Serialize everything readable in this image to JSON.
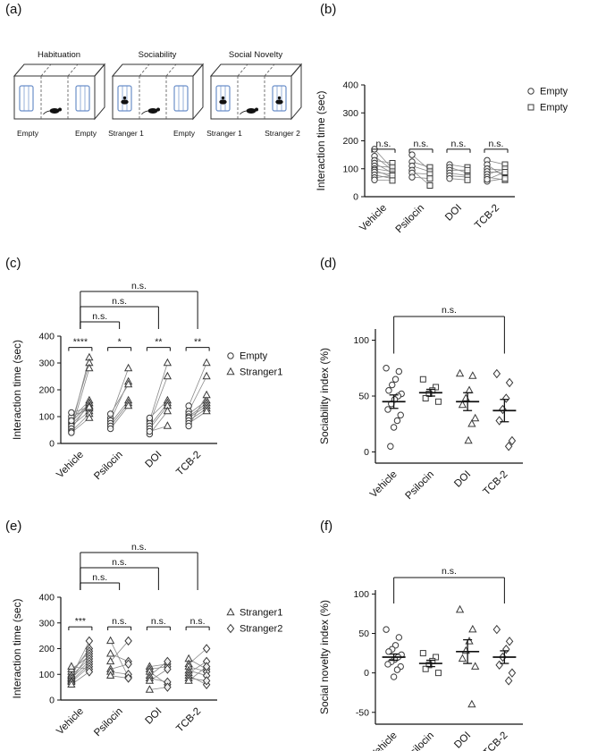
{
  "figure": {
    "panel_labels": {
      "a": "(a)",
      "b": "(b)",
      "c": "(c)",
      "d": "(d)",
      "e": "(e)",
      "f": "(f)"
    }
  },
  "schematic": {
    "phases": [
      {
        "title": "Habituation",
        "left_label": "Empty",
        "right_label": "Empty",
        "mouse_left_cage": false,
        "mouse_right_cage": false,
        "mouse_center": true
      },
      {
        "title": "Sociability",
        "left_label": "Stranger 1",
        "right_label": "Empty",
        "mouse_left_cage": true,
        "mouse_right_cage": false,
        "mouse_center": true
      },
      {
        "title": "Social Novelty",
        "left_label": "Stranger 1",
        "right_label": "Stranger 2",
        "mouse_left_cage": true,
        "mouse_right_cage": true,
        "mouse_center": true
      }
    ]
  },
  "chart_data": [
    {
      "panel": "b",
      "type": "paired",
      "ylabel": "Interaction time (sec)",
      "ylim": [
        0,
        400
      ],
      "yticks": [
        0,
        100,
        200,
        300,
        400
      ],
      "groups": [
        "Vehicle",
        "Psilocin",
        "DOI",
        "TCB-2"
      ],
      "series": [
        {
          "name": "Empty",
          "marker": "circle"
        },
        {
          "name": "Empty",
          "marker": "square"
        }
      ],
      "pairs": [
        [
          [
            170,
            100
          ],
          [
            145,
            95
          ],
          [
            130,
            120
          ],
          [
            120,
            85
          ],
          [
            110,
            105
          ],
          [
            100,
            90
          ],
          [
            95,
            70
          ],
          [
            88,
            80
          ],
          [
            78,
            65
          ],
          [
            68,
            75
          ],
          [
            60,
            58
          ]
        ],
        [
          [
            150,
            95
          ],
          [
            125,
            105
          ],
          [
            110,
            90
          ],
          [
            95,
            40
          ],
          [
            85,
            80
          ],
          [
            70,
            65
          ]
        ],
        [
          [
            115,
            105
          ],
          [
            105,
            85
          ],
          [
            95,
            95
          ],
          [
            85,
            75
          ],
          [
            75,
            70
          ],
          [
            65,
            60
          ]
        ],
        [
          [
            130,
            115
          ],
          [
            115,
            70
          ],
          [
            100,
            95
          ],
          [
            90,
            85
          ],
          [
            80,
            100
          ],
          [
            70,
            60
          ],
          [
            55,
            65
          ],
          [
            62,
            88
          ]
        ]
      ],
      "sig": [
        "n.s.",
        "n.s.",
        "n.s.",
        "n.s."
      ],
      "sig_y": 170,
      "legend": [
        {
          "label": "Empty",
          "marker": "circle"
        },
        {
          "label": "Empty",
          "marker": "square"
        }
      ]
    },
    {
      "panel": "c",
      "type": "paired",
      "ylabel": "Interaction time (sec)",
      "ylim": [
        0,
        400
      ],
      "yticks": [
        0,
        100,
        200,
        300,
        400
      ],
      "groups": [
        "Vehicle",
        "Psilocin",
        "DOI",
        "TCB-2"
      ],
      "series": [
        {
          "name": "Empty",
          "marker": "circle"
        },
        {
          "name": "Stranger1",
          "marker": "triangle"
        }
      ],
      "pairs": [
        [
          [
            60,
            320
          ],
          [
            75,
            300
          ],
          [
            50,
            280
          ],
          [
            90,
            160
          ],
          [
            80,
            150
          ],
          [
            70,
            140
          ],
          [
            100,
            130
          ],
          [
            65,
            120
          ],
          [
            55,
            150
          ],
          [
            85,
            140
          ],
          [
            45,
            110
          ],
          [
            115,
            135
          ],
          [
            40,
            95
          ]
        ],
        [
          [
            95,
            280
          ],
          [
            85,
            230
          ],
          [
            110,
            220
          ],
          [
            75,
            160
          ],
          [
            65,
            150
          ],
          [
            55,
            140
          ]
        ],
        [
          [
            85,
            300
          ],
          [
            75,
            250
          ],
          [
            95,
            160
          ],
          [
            65,
            150
          ],
          [
            55,
            140
          ],
          [
            35,
            120
          ],
          [
            45,
            65
          ]
        ],
        [
          [
            140,
            300
          ],
          [
            120,
            250
          ],
          [
            110,
            160
          ],
          [
            100,
            150
          ],
          [
            95,
            140
          ],
          [
            85,
            130
          ],
          [
            75,
            120
          ],
          [
            65,
            180
          ]
        ]
      ],
      "sig": [
        "****",
        "*",
        "**",
        "**"
      ],
      "sig_y": 358,
      "top_brackets": [
        {
          "from": 0,
          "to": 1,
          "label": "n.s."
        },
        {
          "from": 0,
          "to": 2,
          "label": "n.s."
        },
        {
          "from": 0,
          "to": 3,
          "label": "n.s."
        }
      ],
      "legend": [
        {
          "label": "Empty",
          "marker": "circle"
        },
        {
          "label": "Stranger1",
          "marker": "triangle"
        }
      ]
    },
    {
      "panel": "d",
      "type": "jitter",
      "ylabel": "Sociability index (%)",
      "ylim": [
        -10,
        110
      ],
      "yticks": [
        0,
        50,
        100
      ],
      "groups": [
        "Vehicle",
        "Psilocin",
        "DOI",
        "TCB-2"
      ],
      "markers": [
        "circle",
        "square",
        "triangle",
        "diamond"
      ],
      "values": [
        [
          75,
          72,
          65,
          60,
          55,
          52,
          50,
          47,
          43,
          38,
          33,
          28,
          22,
          5
        ],
        [
          65,
          58,
          55,
          52,
          48,
          45
        ],
        [
          70,
          68,
          55,
          48,
          42,
          30,
          25,
          10
        ],
        [
          70,
          62,
          48,
          38,
          28,
          10,
          5
        ]
      ],
      "mean": [
        45,
        53,
        45,
        37
      ],
      "sem": [
        6,
        3,
        8,
        10
      ],
      "top_bracket": {
        "from": 0,
        "to": 3,
        "label": "n.s.",
        "drop_to": 88
      }
    },
    {
      "panel": "e",
      "type": "paired",
      "ylabel": "Interaction time (sec)",
      "ylim": [
        0,
        400
      ],
      "yticks": [
        0,
        100,
        200,
        300,
        400
      ],
      "groups": [
        "Vehicle",
        "Psilocin",
        "DOI",
        "TCB-2"
      ],
      "series": [
        {
          "name": "Stranger1",
          "marker": "triangle"
        },
        {
          "name": "Stranger2",
          "marker": "diamond"
        }
      ],
      "pairs": [
        [
          [
            90,
            230
          ],
          [
            100,
            200
          ],
          [
            110,
            190
          ],
          [
            80,
            180
          ],
          [
            120,
            170
          ],
          [
            95,
            160
          ],
          [
            85,
            150
          ],
          [
            75,
            140
          ],
          [
            70,
            130
          ],
          [
            130,
            120
          ],
          [
            60,
            110
          ]
        ],
        [
          [
            230,
            90
          ],
          [
            180,
            150
          ],
          [
            150,
            230
          ],
          [
            120,
            140
          ],
          [
            110,
            100
          ],
          [
            95,
            85
          ]
        ],
        [
          [
            130,
            140
          ],
          [
            120,
            130
          ],
          [
            110,
            60
          ],
          [
            95,
            150
          ],
          [
            85,
            70
          ],
          [
            75,
            120
          ],
          [
            40,
            50
          ]
        ],
        [
          [
            160,
            120
          ],
          [
            140,
            200
          ],
          [
            130,
            110
          ],
          [
            115,
            95
          ],
          [
            105,
            150
          ],
          [
            95,
            60
          ],
          [
            85,
            75
          ],
          [
            75,
            130
          ]
        ]
      ],
      "sig": [
        "***",
        "n.s.",
        "n.s.",
        "n.s."
      ],
      "sig_y": 285,
      "top_brackets": [
        {
          "from": 0,
          "to": 1,
          "label": "n.s."
        },
        {
          "from": 0,
          "to": 2,
          "label": "n.s."
        },
        {
          "from": 0,
          "to": 3,
          "label": "n.s."
        }
      ],
      "legend": [
        {
          "label": "Stranger1",
          "marker": "triangle"
        },
        {
          "label": "Stranger2",
          "marker": "diamond"
        }
      ]
    },
    {
      "panel": "f",
      "type": "jitter",
      "ylabel": "Social novelty index (%)",
      "ylim": [
        -65,
        105
      ],
      "yticks": [
        -50,
        0,
        50,
        100
      ],
      "groups": [
        "Vehicle",
        "Psilocin",
        "DOI",
        "TCB-2"
      ],
      "markers": [
        "circle",
        "square",
        "triangle",
        "diamond"
      ],
      "values": [
        [
          55,
          45,
          35,
          30,
          27,
          23,
          20,
          17,
          14,
          11,
          8,
          4,
          -5
        ],
        [
          25,
          20,
          15,
          10,
          5,
          0
        ],
        [
          80,
          55,
          40,
          28,
          18,
          8,
          -40
        ],
        [
          55,
          40,
          30,
          20,
          10,
          0,
          -10
        ]
      ],
      "mean": [
        20,
        12,
        27,
        20
      ],
      "sem": [
        4,
        4,
        15,
        8
      ],
      "top_bracket": {
        "from": 0,
        "to": 3,
        "label": "n.s.",
        "drop_to": 88
      }
    }
  ]
}
